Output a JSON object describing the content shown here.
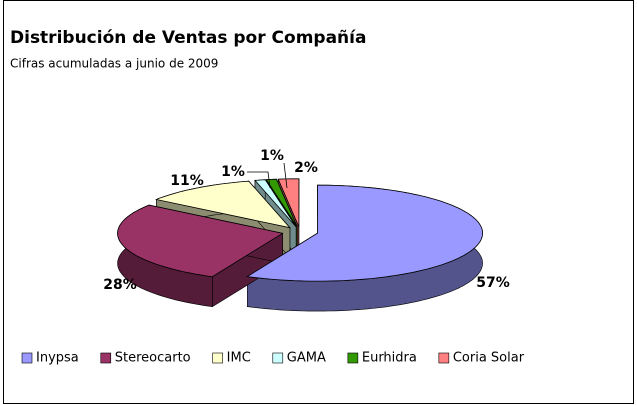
{
  "chart_data": {
    "type": "pie",
    "title": "Distribución de Ventas por Compañía",
    "subtitle": "Cifras acumuladas a junio de 2009",
    "categories": [
      "Inypsa",
      "Stereocarto",
      "IMC",
      "GAMA",
      "Eurhidra",
      "Coria Solar"
    ],
    "values": [
      57,
      28,
      11,
      1,
      1,
      2
    ],
    "value_labels": [
      "57%",
      "28%",
      "11%",
      "1%",
      "1%",
      "2%"
    ],
    "colors": [
      "#9999ff",
      "#993366",
      "#ffffcc",
      "#ccffff",
      "#339900",
      "#ff8080"
    ],
    "legend": "bottom"
  }
}
